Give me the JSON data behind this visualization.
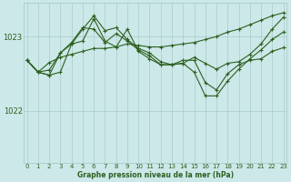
{
  "background_color": "#cce8e8",
  "plot_bg_color": "#cce8e8",
  "grid_color": "#aacccc",
  "line_color": "#2d6020",
  "title": "Graphe pression niveau de la mer (hPa)",
  "xlabel_ticks": [
    0,
    1,
    2,
    3,
    4,
    5,
    6,
    7,
    8,
    9,
    10,
    11,
    12,
    13,
    14,
    15,
    16,
    17,
    18,
    19,
    20,
    21,
    22,
    23
  ],
  "yticks": [
    1022,
    1023
  ],
  "ylim": [
    1021.3,
    1023.45
  ],
  "xlim": [
    -0.3,
    23.3
  ],
  "series": [
    [
      1022.68,
      1022.52,
      1022.65,
      1022.72,
      1022.76,
      1022.8,
      1022.84,
      1022.84,
      1022.86,
      1022.9,
      1022.88,
      1022.86,
      1022.86,
      1022.88,
      1022.9,
      1022.92,
      1022.96,
      1023.0,
      1023.06,
      1023.1,
      1023.16,
      1023.22,
      1023.28,
      1023.32
    ],
    [
      1022.68,
      1022.52,
      1022.55,
      1022.78,
      1022.9,
      1022.94,
      1023.24,
      1022.94,
      1022.86,
      1023.1,
      1022.8,
      1022.7,
      1022.62,
      1022.62,
      1022.68,
      1022.68,
      1022.38,
      1022.28,
      1022.5,
      1022.62,
      1022.68,
      1022.7,
      1022.8,
      1022.85
    ],
    [
      1022.68,
      1022.52,
      1022.48,
      1022.52,
      1022.9,
      1023.1,
      1023.28,
      1023.08,
      1023.12,
      1022.96,
      1022.84,
      1022.78,
      1022.66,
      1022.62,
      1022.64,
      1022.52,
      1022.2,
      1022.2,
      1022.4,
      1022.56,
      1022.7,
      1022.82,
      1022.96,
      1023.06
    ],
    [
      1022.68,
      1022.52,
      1022.48,
      1022.78,
      1022.92,
      1023.12,
      1023.1,
      1022.92,
      1023.04,
      1022.94,
      1022.82,
      1022.74,
      1022.62,
      1022.62,
      1022.64,
      1022.72,
      1022.64,
      1022.56,
      1022.64,
      1022.66,
      1022.76,
      1022.9,
      1023.1,
      1023.26
    ]
  ]
}
